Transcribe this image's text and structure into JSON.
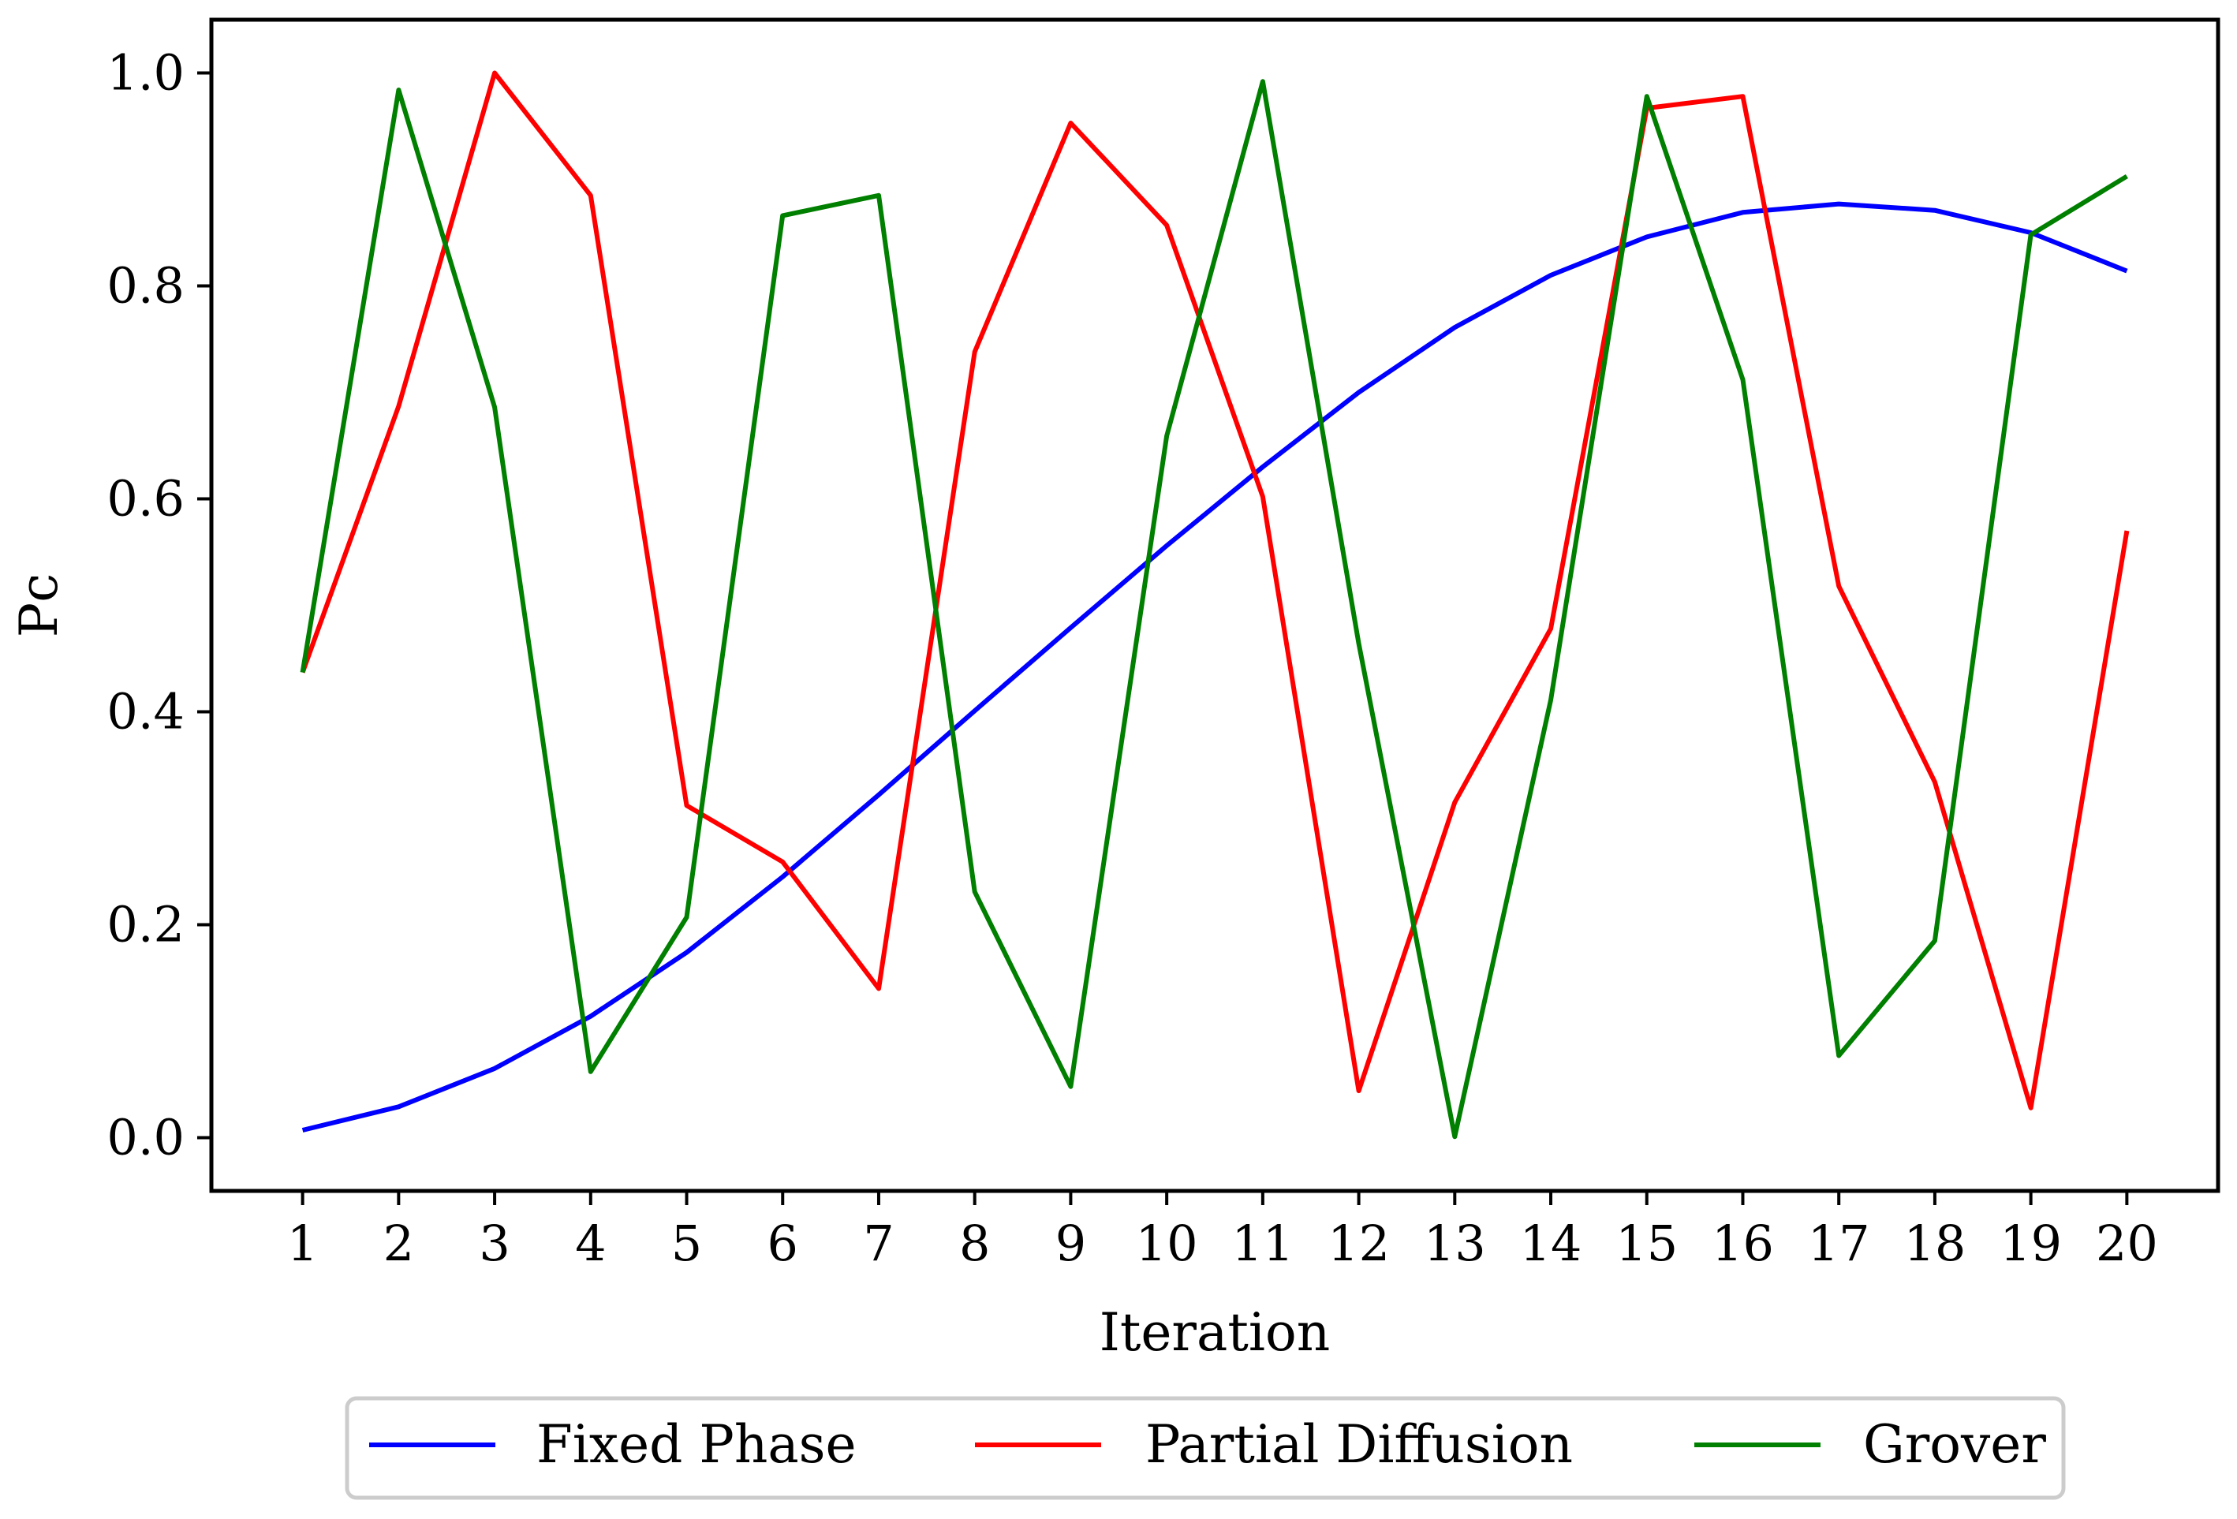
{
  "chart_data": {
    "type": "line",
    "xlabel": "Iteration",
    "ylabel": "Pc",
    "x": [
      1,
      2,
      3,
      4,
      5,
      6,
      7,
      8,
      9,
      10,
      11,
      12,
      13,
      14,
      15,
      16,
      17,
      18,
      19,
      20
    ],
    "xticks": [
      "1",
      "2",
      "3",
      "4",
      "5",
      "6",
      "7",
      "8",
      "9",
      "10",
      "11",
      "12",
      "13",
      "14",
      "15",
      "16",
      "17",
      "18",
      "19",
      "20"
    ],
    "xlim": [
      0.05,
      20.95
    ],
    "ylim": [
      -0.05,
      1.05
    ],
    "yticks": [
      "0.0",
      "0.2",
      "0.4",
      "0.6",
      "0.8",
      "1.0"
    ],
    "grid": false,
    "legend_position": "bottom-center",
    "series": [
      {
        "name": "Fixed Phase",
        "color": "#0000ff",
        "values": [
          0.007,
          0.029,
          0.065,
          0.114,
          0.174,
          0.245,
          0.322,
          0.401,
          0.479,
          0.556,
          0.63,
          0.7,
          0.761,
          0.81,
          0.846,
          0.869,
          0.877,
          0.871,
          0.85,
          0.814
        ]
      },
      {
        "name": "Partial Diffusion",
        "color": "#ff0000",
        "values": [
          0.437,
          0.687,
          1.0,
          0.885,
          0.312,
          0.259,
          0.14,
          0.738,
          0.953,
          0.857,
          0.602,
          0.044,
          0.315,
          0.478,
          0.967,
          0.978,
          0.518,
          0.334,
          0.028,
          0.57
        ]
      },
      {
        "name": "Grover",
        "color": "#007f00",
        "values": [
          0.437,
          0.984,
          0.686,
          0.062,
          0.207,
          0.866,
          0.885,
          0.231,
          0.048,
          0.659,
          0.992,
          0.464,
          0.001,
          0.411,
          0.978,
          0.712,
          0.077,
          0.185,
          0.848,
          0.903
        ]
      }
    ]
  }
}
